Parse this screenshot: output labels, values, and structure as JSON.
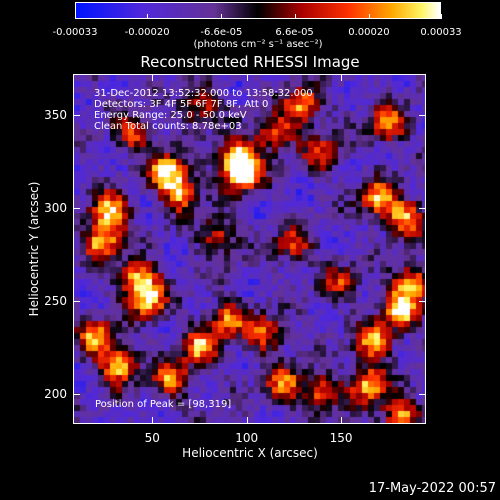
{
  "colorbar": {
    "ticks": [
      "-0.00033",
      "-0.00020",
      "-6.6e-05",
      "6.6e-05",
      "0.00020",
      "0.00033"
    ],
    "tick_values": [
      -0.00033,
      -0.0002,
      -6.6e-05,
      6.6e-05,
      0.0002,
      0.00033
    ],
    "range": [
      -0.00033,
      0.00033
    ],
    "unit_label": "(photons cm⁻² s⁻¹ asec⁻²)"
  },
  "chart_data": {
    "type": "heatmap",
    "title": "Reconstructed RHESSI Image",
    "xlabel": "Heliocentric X (arcsec)",
    "ylabel": "Heliocentric Y (arcsec)",
    "xlim": [
      8,
      195
    ],
    "ylim": [
      184,
      372
    ],
    "xticks": [
      50,
      100,
      150
    ],
    "yticks": [
      200,
      250,
      300,
      350
    ],
    "peak": [
      98,
      319
    ],
    "annotations": [
      "31-Dec-2012 13:52:32.000 to 13:58:32.000",
      "Detectors: 3F 4F 5F 6F 7F 8F, Att 0",
      "Energy Range: 25.0 - 50.0 keV",
      "Clean    Total counts: 8.78e+03"
    ],
    "peak_label": "Position of Peak = [98,319]",
    "hot_spots": [
      {
        "x": 98,
        "y": 319,
        "i": 1.0
      },
      {
        "x": 95,
        "y": 327,
        "i": 0.85
      },
      {
        "x": 58,
        "y": 320,
        "i": 0.9
      },
      {
        "x": 65,
        "y": 308,
        "i": 0.75
      },
      {
        "x": 27,
        "y": 298,
        "i": 0.9
      },
      {
        "x": 23,
        "y": 282,
        "i": 0.85
      },
      {
        "x": 42,
        "y": 262,
        "i": 0.9
      },
      {
        "x": 48,
        "y": 250,
        "i": 0.8
      },
      {
        "x": 20,
        "y": 230,
        "i": 0.75
      },
      {
        "x": 32,
        "y": 215,
        "i": 0.85
      },
      {
        "x": 60,
        "y": 208,
        "i": 0.7
      },
      {
        "x": 75,
        "y": 225,
        "i": 0.75
      },
      {
        "x": 90,
        "y": 240,
        "i": 0.7
      },
      {
        "x": 110,
        "y": 232,
        "i": 0.65
      },
      {
        "x": 120,
        "y": 205,
        "i": 0.7
      },
      {
        "x": 140,
        "y": 200,
        "i": 0.7
      },
      {
        "x": 165,
        "y": 205,
        "i": 0.85
      },
      {
        "x": 182,
        "y": 188,
        "i": 0.8
      },
      {
        "x": 168,
        "y": 228,
        "i": 0.8
      },
      {
        "x": 182,
        "y": 245,
        "i": 0.85
      },
      {
        "x": 188,
        "y": 260,
        "i": 0.8
      },
      {
        "x": 170,
        "y": 305,
        "i": 0.8
      },
      {
        "x": 185,
        "y": 295,
        "i": 0.8
      },
      {
        "x": 175,
        "y": 345,
        "i": 0.75
      },
      {
        "x": 130,
        "y": 355,
        "i": 0.8
      },
      {
        "x": 115,
        "y": 340,
        "i": 0.7
      },
      {
        "x": 140,
        "y": 330,
        "i": 0.55
      },
      {
        "x": 75,
        "y": 355,
        "i": 0.6
      },
      {
        "x": 40,
        "y": 340,
        "i": 0.6
      },
      {
        "x": 85,
        "y": 285,
        "i": 0.6
      },
      {
        "x": 125,
        "y": 280,
        "i": 0.55
      },
      {
        "x": 150,
        "y": 260,
        "i": 0.5
      }
    ]
  },
  "footer": "17-May-2022 00:57"
}
